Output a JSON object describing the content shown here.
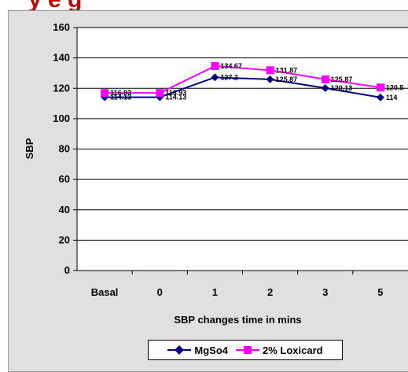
{
  "title": "y   e   g",
  "chart_data": {
    "type": "line",
    "categories": [
      "Basal",
      "0",
      "1",
      "2",
      "3",
      "5"
    ],
    "series": [
      {
        "name": "MgSo4",
        "values": [
          114.13,
          114.13,
          127.2,
          125.87,
          120.13,
          114
        ],
        "labels": [
          "114.13",
          "114.13",
          "127.2",
          "125.87",
          "120.13",
          "114"
        ],
        "color": "#000080",
        "marker": "diamond"
      },
      {
        "name": "2% Loxicard",
        "values": [
          116.93,
          116.93,
          134.67,
          131.87,
          125.87,
          120.5
        ],
        "labels": [
          "116.93",
          "116.93",
          "134.67",
          "131.87",
          "125.87",
          "120.5"
        ],
        "color": "#ff00ff",
        "marker": "square"
      }
    ],
    "yticks": [
      "0",
      "20",
      "40",
      "60",
      "80",
      "100",
      "120",
      "140",
      "160"
    ],
    "ylim": [
      0,
      160
    ],
    "xlabel": "SBP changes time in mins",
    "ylabel": "SBP",
    "grid": true,
    "legend_position": "bottom",
    "plot_background": "#ffffff",
    "chart_background": "#e0e0e0"
  }
}
